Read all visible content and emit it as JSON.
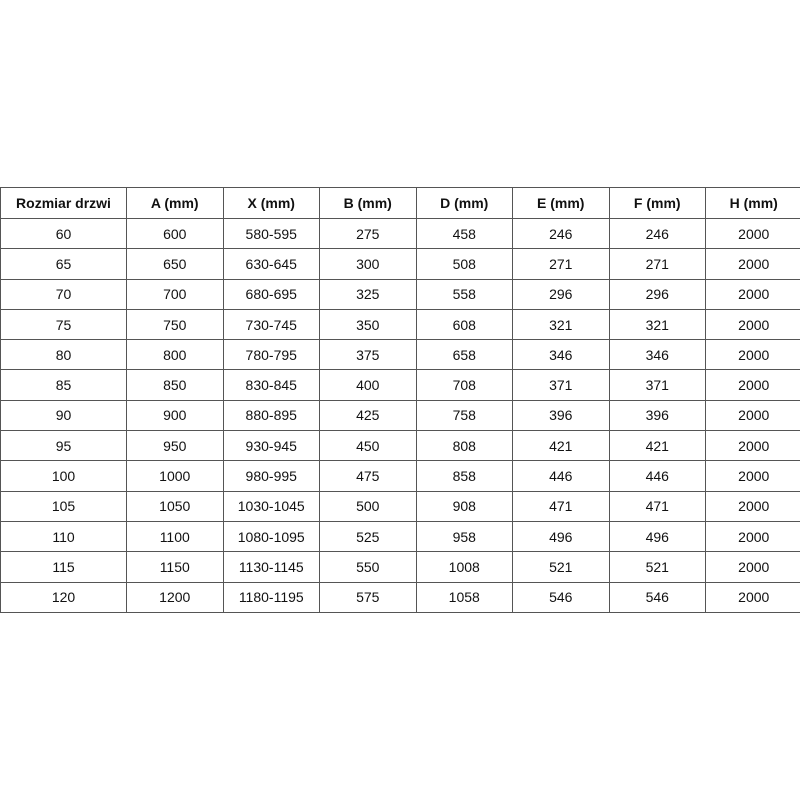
{
  "table": {
    "headers": [
      "Rozmiar drzwi",
      "A (mm)",
      "X (mm)",
      "B (mm)",
      "D (mm)",
      "E (mm)",
      "F (mm)",
      "H (mm)"
    ],
    "rows": [
      [
        "60",
        "600",
        "580-595",
        "275",
        "458",
        "246",
        "246",
        "2000"
      ],
      [
        "65",
        "650",
        "630-645",
        "300",
        "508",
        "271",
        "271",
        "2000"
      ],
      [
        "70",
        "700",
        "680-695",
        "325",
        "558",
        "296",
        "296",
        "2000"
      ],
      [
        "75",
        "750",
        "730-745",
        "350",
        "608",
        "321",
        "321",
        "2000"
      ],
      [
        "80",
        "800",
        "780-795",
        "375",
        "658",
        "346",
        "346",
        "2000"
      ],
      [
        "85",
        "850",
        "830-845",
        "400",
        "708",
        "371",
        "371",
        "2000"
      ],
      [
        "90",
        "900",
        "880-895",
        "425",
        "758",
        "396",
        "396",
        "2000"
      ],
      [
        "95",
        "950",
        "930-945",
        "450",
        "808",
        "421",
        "421",
        "2000"
      ],
      [
        "100",
        "1000",
        "980-995",
        "475",
        "858",
        "446",
        "446",
        "2000"
      ],
      [
        "105",
        "1050",
        "1030-1045",
        "500",
        "908",
        "471",
        "471",
        "2000"
      ],
      [
        "110",
        "1100",
        "1080-1095",
        "525",
        "958",
        "496",
        "496",
        "2000"
      ],
      [
        "115",
        "1150",
        "1130-1145",
        "550",
        "1008",
        "521",
        "521",
        "2000"
      ],
      [
        "120",
        "1200",
        "1180-1195",
        "575",
        "1058",
        "546",
        "546",
        "2000"
      ]
    ]
  }
}
